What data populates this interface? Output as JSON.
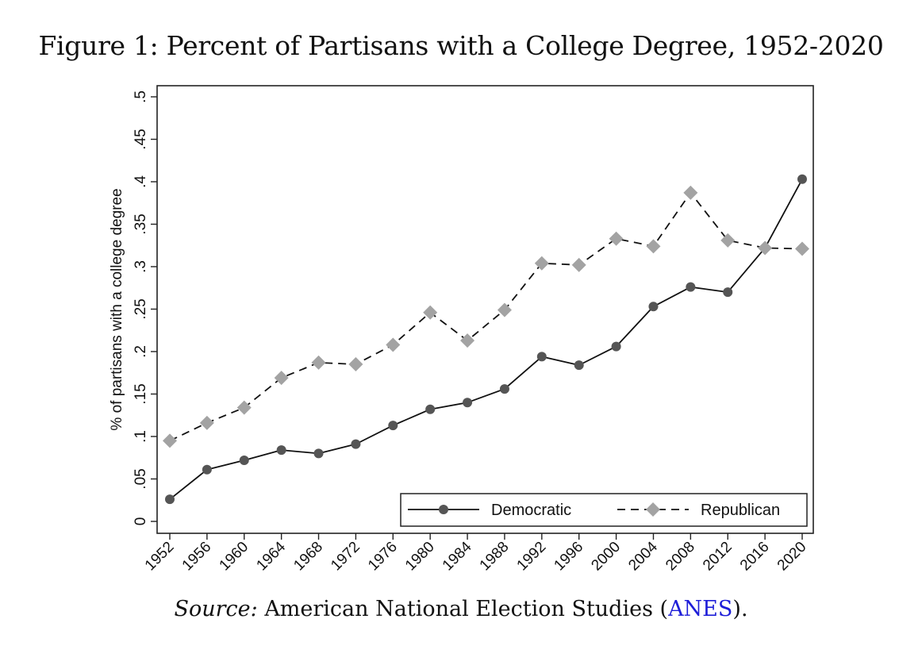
{
  "figure": {
    "caption": "Figure 1: Percent of Partisans with a College Degree, 1952-2020",
    "source_label": "Source:",
    "source_text": "American National Election Studies (",
    "source_link": "ANES",
    "source_end": ")."
  },
  "chart_data": {
    "type": "line",
    "title": "Percent of Partisans with a College Degree, 1952-2020",
    "xlabel": "",
    "ylabel": "% of partisans with a college degree",
    "x": [
      1952,
      1956,
      1960,
      1964,
      1968,
      1972,
      1976,
      1980,
      1984,
      1988,
      1992,
      1996,
      2000,
      2004,
      2008,
      2012,
      2016,
      2020
    ],
    "x_tick_labels": [
      "1952",
      "1956",
      "1960",
      "1964",
      "1968",
      "1972",
      "1976",
      "1980",
      "1984",
      "1988",
      "1992",
      "1996",
      "2000",
      "2004",
      "2008",
      "2012",
      "2016",
      "2020"
    ],
    "y_ticks": [
      0,
      0.05,
      0.1,
      0.15,
      0.2,
      0.25,
      0.3,
      0.35,
      0.4,
      0.45,
      0.5
    ],
    "y_tick_labels": [
      "0",
      ".05",
      ".1",
      ".15",
      ".2",
      ".25",
      ".3",
      ".35",
      ".4",
      ".45",
      ".5"
    ],
    "ylim": [
      0,
      0.5
    ],
    "legend_position": "bottom-right",
    "series": [
      {
        "name": "Democratic",
        "color": "#555555",
        "line_style": "solid",
        "marker": "circle",
        "values": [
          0.026,
          0.061,
          0.072,
          0.084,
          0.08,
          0.091,
          0.113,
          0.132,
          0.14,
          0.156,
          0.194,
          0.184,
          0.206,
          0.253,
          0.276,
          0.27,
          0.322,
          0.403
        ]
      },
      {
        "name": "Republican",
        "color": "#a3a3a3",
        "line_style": "dashed",
        "marker": "diamond",
        "values": [
          0.095,
          0.116,
          0.134,
          0.169,
          0.187,
          0.185,
          0.208,
          0.246,
          0.213,
          0.249,
          0.304,
          0.302,
          0.333,
          0.324,
          0.387,
          0.331,
          0.322,
          0.321
        ]
      }
    ]
  }
}
